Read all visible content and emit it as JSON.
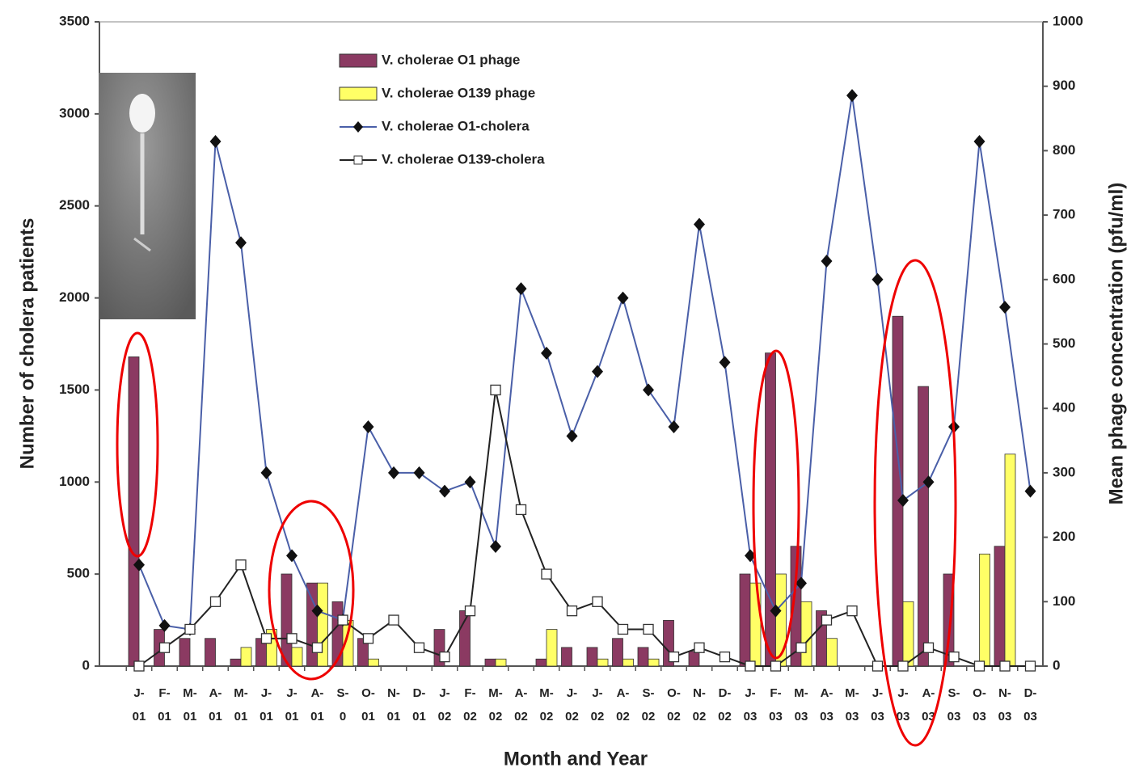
{
  "chart_data": {
    "type": "combo",
    "x_label": "Month and Year",
    "y_label": "Number of cholera patients",
    "y2_label": "Mean phage concentration  (pfu/ml)",
    "categories": [
      [
        "J-",
        "01"
      ],
      [
        "F-",
        "01"
      ],
      [
        "M-",
        "01"
      ],
      [
        "A-",
        "01"
      ],
      [
        "M-",
        "01"
      ],
      [
        "J-",
        "01"
      ],
      [
        "J-",
        "01"
      ],
      [
        "A-",
        "01"
      ],
      [
        "S-",
        "0"
      ],
      [
        "O-",
        "01"
      ],
      [
        "N-",
        "01"
      ],
      [
        "D-",
        "01"
      ],
      [
        "J-",
        "02"
      ],
      [
        "F-",
        "02"
      ],
      [
        "M-",
        "02"
      ],
      [
        "A-",
        "02"
      ],
      [
        "M-",
        "02"
      ],
      [
        "J-",
        "02"
      ],
      [
        "J-",
        "02"
      ],
      [
        "A-",
        "02"
      ],
      [
        "S-",
        "02"
      ],
      [
        "O-",
        "02"
      ],
      [
        "N-",
        "02"
      ],
      [
        "D-",
        "02"
      ],
      [
        "J-",
        "03"
      ],
      [
        "F-",
        "03"
      ],
      [
        "M-",
        "03"
      ],
      [
        "A-",
        "03"
      ],
      [
        "M-",
        "03"
      ],
      [
        "J-",
        "03"
      ],
      [
        "J-",
        "03"
      ],
      [
        "A-",
        "03"
      ],
      [
        "S-",
        "03"
      ],
      [
        "O-",
        "03"
      ],
      [
        "N-",
        "03"
      ],
      [
        "D-",
        "03"
      ]
    ],
    "ylim": [
      0,
      3500
    ],
    "yticks": [
      0,
      500,
      1000,
      1500,
      2000,
      2500,
      3000,
      3500
    ],
    "y2lim": [
      0,
      1000
    ],
    "y2ticks": [
      0,
      100,
      200,
      300,
      400,
      500,
      600,
      700,
      800,
      900,
      1000
    ],
    "series": [
      {
        "name": "V. cholerae O1 phage",
        "type": "bar",
        "axis": "y2",
        "color": "#8b3a62",
        "values": [
          480,
          57,
          43,
          43,
          11,
          43,
          143,
          129,
          100,
          43,
          0,
          0,
          57,
          86,
          11,
          0,
          11,
          29,
          29,
          43,
          29,
          71,
          23,
          0,
          143,
          486,
          186,
          86,
          0,
          0,
          543,
          434,
          143,
          0,
          186,
          0
        ]
      },
      {
        "name": "V. cholerae O139 phage",
        "type": "bar",
        "axis": "y2",
        "color": "#ffff66",
        "values": [
          0,
          0,
          0,
          0,
          29,
          57,
          29,
          129,
          71,
          11,
          0,
          0,
          0,
          0,
          11,
          0,
          57,
          0,
          11,
          11,
          11,
          0,
          0,
          0,
          129,
          143,
          100,
          43,
          0,
          0,
          100,
          0,
          0,
          174,
          329,
          0
        ]
      },
      {
        "name": "V. cholerae O1-cholera",
        "type": "line",
        "color": "#4a5fa8",
        "values": [
          550,
          220,
          200,
          2850,
          2300,
          1050,
          600,
          300,
          250,
          1300,
          1050,
          1050,
          950,
          1000,
          650,
          2050,
          1700,
          1250,
          1600,
          2000,
          1500,
          1300,
          2400,
          1650,
          600,
          300,
          450,
          2200,
          3100,
          2100,
          900,
          1000,
          1300,
          2850,
          1950,
          950
        ]
      },
      {
        "name": "V. cholerae O139-cholera",
        "type": "line",
        "color": "#222222",
        "values": [
          0,
          100,
          200,
          350,
          550,
          150,
          150,
          100,
          250,
          150,
          250,
          100,
          50,
          300,
          1500,
          850,
          500,
          300,
          350,
          200,
          200,
          50,
          100,
          50,
          0,
          0,
          100,
          250,
          300,
          0,
          0,
          100,
          50,
          0,
          0,
          0
        ]
      }
    ]
  }
}
